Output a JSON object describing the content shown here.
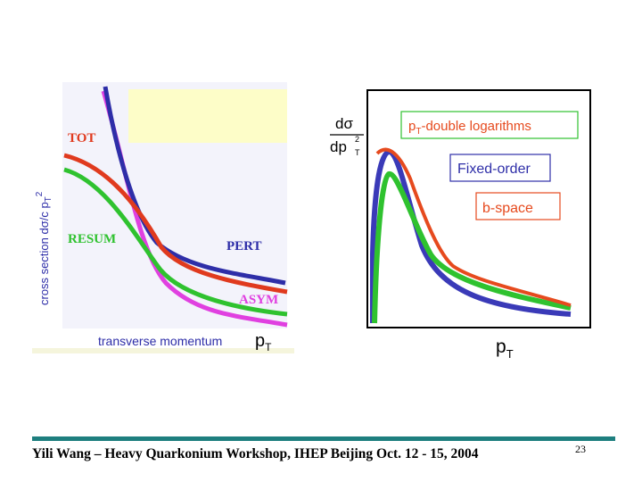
{
  "left_diagram": {
    "y_axis_label": "cross section dσ/c p",
    "y_axis_sub": "T",
    "y_axis_sup": "2",
    "x_axis_label": "transverse momentum",
    "x_axis_symbol": "p",
    "x_axis_sub": "T",
    "curves": [
      {
        "label": "TOT",
        "color": "#e03a1e"
      },
      {
        "label": "RESUM",
        "color": "#2fc22f"
      },
      {
        "label": "PERT",
        "color": "#2e2ea8"
      },
      {
        "label": "ASYM",
        "color": "#e040e0"
      }
    ]
  },
  "right_diagram": {
    "y_axis_numerator": "dσ",
    "y_axis_denominator": "dp",
    "y_axis_sup": "2",
    "y_axis_sub": "T",
    "x_axis_symbol": "p",
    "x_axis_sub": "T",
    "box_double_log_prefix": "p",
    "box_double_log_sub": "T",
    "box_double_log_rest": "-double logarithms",
    "box_fixed_order": "Fixed-order",
    "box_b_space": "b-space"
  },
  "footer": {
    "text": "Yili Wang – Heavy Quarkonium Workshop, IHEP Beijing  Oct. 12 - 15,  2004",
    "page_number": "23"
  },
  "colors": {
    "accent_line": "#1e7f7f",
    "tot": "#e03a1e",
    "resum": "#2fc22f",
    "pert": "#2e2ea8",
    "asym": "#e040e0"
  }
}
